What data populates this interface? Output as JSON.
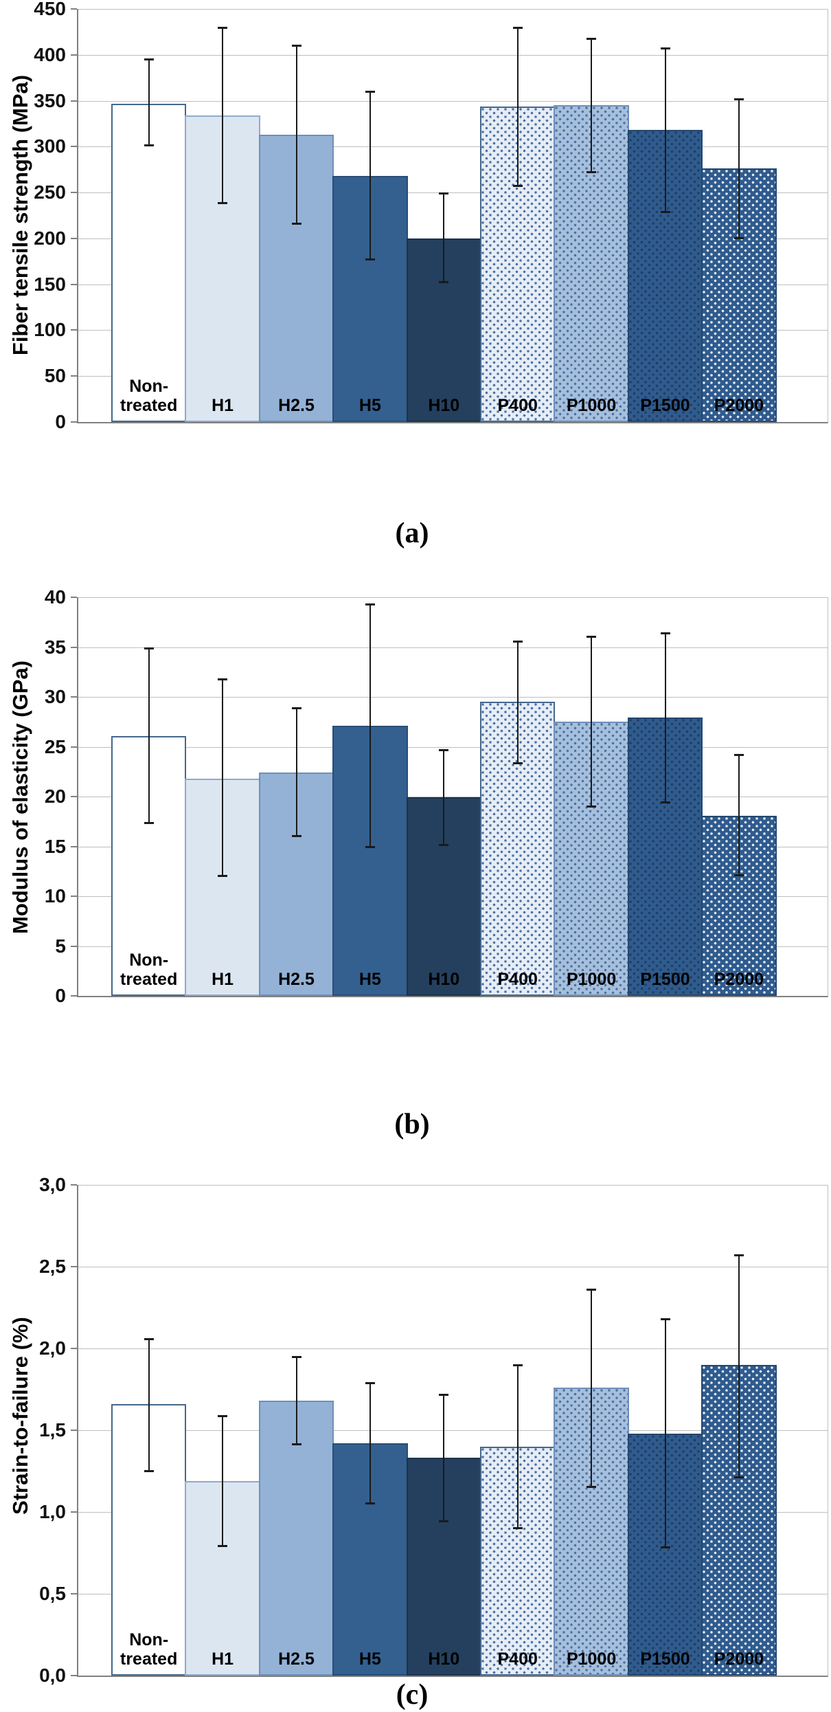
{
  "colors": {
    "grid": "#BFBFBF",
    "axis": "#808080",
    "error_bar": "#1A1A1A",
    "text": "#000000"
  },
  "bar_styles": [
    {
      "name": "non-treated",
      "fill": "#FFFFFF",
      "border": "#44688D",
      "dots": null
    },
    {
      "name": "h1",
      "fill": "#DCE6F1",
      "border": "#8FAACC",
      "dots": null
    },
    {
      "name": "h2.5",
      "fill": "#94B2D6",
      "border": "#6F8FB8",
      "dots": null
    },
    {
      "name": "h5",
      "fill": "#33608F",
      "border": "#284D74",
      "dots": null
    },
    {
      "name": "h10",
      "fill": "#24405E",
      "border": "#1C334C",
      "dots": null
    },
    {
      "name": "p400",
      "fill": "#E6EDF6",
      "border": "#44688D",
      "dots": "#4D72A3"
    },
    {
      "name": "p1000",
      "fill": "#A6BFDC",
      "border": "#6F8FB8",
      "dots": "#4D72A3"
    },
    {
      "name": "p1500",
      "fill": "#2F5B8E",
      "border": "#24476E",
      "dots": "#1F3E61"
    },
    {
      "name": "p2000",
      "fill": "#2F5B8E",
      "border": "#24476E",
      "dots": "#E9EFF6"
    }
  ],
  "chart_data": [
    {
      "type": "bar",
      "caption": "(a)",
      "ylabel": "Fiber tensile strength (MPa)",
      "ylim": [
        0,
        450
      ],
      "ytick_step": 50,
      "ytick_labels": [
        "450",
        "400",
        "350",
        "300",
        "250",
        "200",
        "150",
        "100",
        "50",
        "0"
      ],
      "grid": true,
      "legend": "none",
      "categories": [
        "Non-\ntreated",
        "H1",
        "H2.5",
        "H5",
        "H10",
        "P400",
        "P1000",
        "P1500",
        "P2000"
      ],
      "values": [
        347,
        334,
        313,
        268,
        200,
        344,
        345,
        318,
        276
      ],
      "error_low": [
        301,
        238,
        216,
        177,
        152,
        257,
        272,
        228,
        200
      ],
      "error_high": [
        395,
        430,
        410,
        360,
        249,
        430,
        418,
        407,
        352
      ]
    },
    {
      "type": "bar",
      "caption": "(b)",
      "ylabel": "Modulus of elasticity (GPa)",
      "ylim": [
        0,
        40
      ],
      "ytick_step": 5,
      "ytick_labels": [
        "40",
        "35",
        "30",
        "25",
        "20",
        "15",
        "10",
        "5",
        "0"
      ],
      "grid": true,
      "legend": "none",
      "categories": [
        "Non-\ntreated",
        "H1",
        "H2.5",
        "H5",
        "H10",
        "P400",
        "P1000",
        "P1500",
        "P2000"
      ],
      "values": [
        26.1,
        21.8,
        22.4,
        27.1,
        19.9,
        29.5,
        27.5,
        27.9,
        18.1
      ],
      "error_low": [
        17.3,
        12.0,
        16.0,
        14.9,
        15.1,
        23.3,
        19.0,
        19.4,
        12.1
      ],
      "error_high": [
        34.9,
        31.8,
        28.9,
        39.3,
        24.7,
        35.6,
        36.1,
        36.4,
        24.2
      ]
    },
    {
      "type": "bar",
      "caption": "(c)",
      "ylabel": "Strain-to-failure (%)",
      "ylim": [
        0,
        3.0
      ],
      "ytick_step": 0.5,
      "ytick_labels": [
        "3,0",
        "2,5",
        "2,0",
        "1,5",
        "1,0",
        "0,5",
        "0,0"
      ],
      "grid": true,
      "legend": "none",
      "categories": [
        "Non-\ntreated",
        "H1",
        "H2.5",
        "H5",
        "H10",
        "P400",
        "P1000",
        "P1500",
        "P2000"
      ],
      "values": [
        1.66,
        1.19,
        1.68,
        1.42,
        1.33,
        1.4,
        1.76,
        1.48,
        1.9
      ],
      "error_low": [
        1.25,
        0.79,
        1.41,
        1.05,
        0.94,
        0.9,
        1.15,
        0.78,
        1.21
      ],
      "error_high": [
        2.06,
        1.59,
        1.95,
        1.79,
        1.72,
        1.9,
        2.36,
        2.18,
        2.57
      ]
    }
  ]
}
